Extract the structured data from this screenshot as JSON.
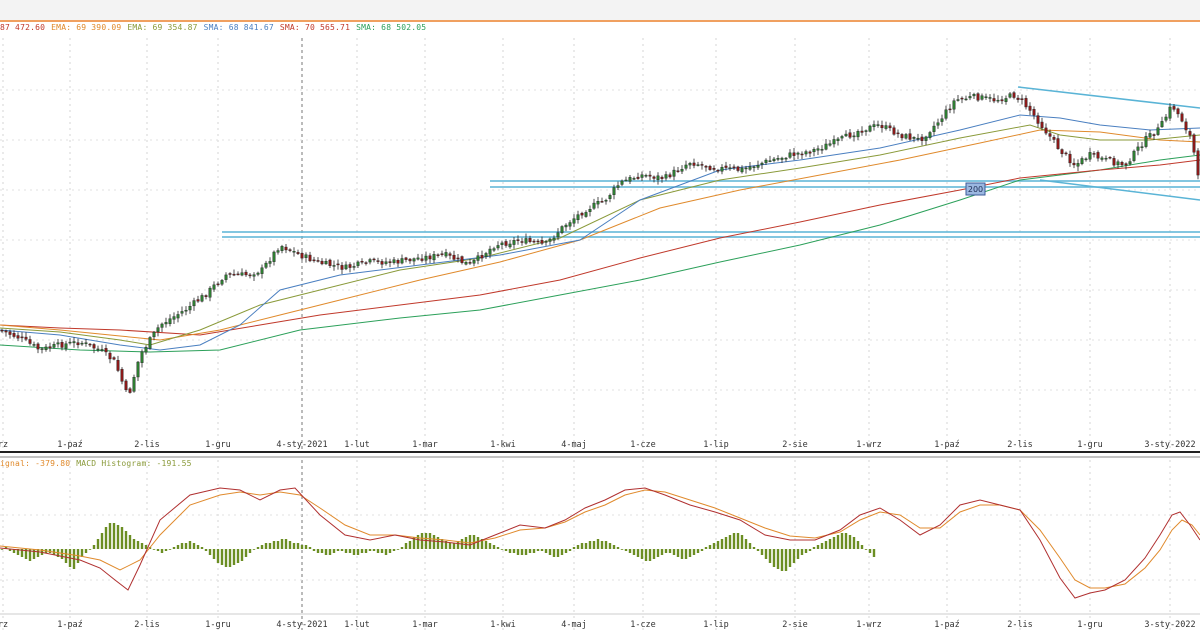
{
  "legend": {
    "items": [
      {
        "text": "87 472.60",
        "color": "#c0392b"
      },
      {
        "text": "EMA: 69 390.09",
        "color": "#e08a2c"
      },
      {
        "text": "EMA: 69 354.87",
        "color": "#8a9a3a"
      },
      {
        "text": "SMA: 68 841.67",
        "color": "#4a7fc0"
      },
      {
        "text": "SMA: 70 565.71",
        "color": "#c0392b"
      },
      {
        "text": "SMA: 68 502.05",
        "color": "#2ca05a"
      }
    ]
  },
  "macd_legend": {
    "items": [
      {
        "text": "ignal: -379.80",
        "color": "#e08a2c"
      },
      {
        "text": "MACD Histogram: -191.55",
        "color": "#8a9a3a"
      }
    ]
  },
  "ma_label": "200",
  "colors": {
    "up": "#2e7d32",
    "down": "#8b1a1a",
    "trend": "#5ab4d6",
    "ema1": "#e08a2c",
    "ema2": "#8a9a3a",
    "sma50": "#4a7fc0",
    "sma100": "#c0392b",
    "sma200": "#2ca05a",
    "macd": "#b03030",
    "signal": "#e08a2c",
    "hist": "#6b8e23"
  },
  "chart_data": [
    {
      "type": "candlestick",
      "x_ticks": [
        "rz",
        "1-paź",
        "2-lis",
        "1-gru",
        "4-sty-2021",
        "1-lut",
        "1-mar",
        "1-kwi",
        "4-maj",
        "1-cze",
        "1-lip",
        "2-sie",
        "1-wrz",
        "1-paź",
        "2-lis",
        "1-gru",
        "3-sty-2022"
      ],
      "close_path": [
        [
          0,
          330
        ],
        [
          20,
          338
        ],
        [
          40,
          350
        ],
        [
          60,
          345
        ],
        [
          80,
          342
        ],
        [
          100,
          350
        ],
        [
          115,
          362
        ],
        [
          128,
          398
        ],
        [
          140,
          355
        ],
        [
          160,
          325
        ],
        [
          185,
          310
        ],
        [
          205,
          295
        ],
        [
          225,
          275
        ],
        [
          245,
          275
        ],
        [
          262,
          270
        ],
        [
          280,
          245
        ],
        [
          300,
          255
        ],
        [
          320,
          263
        ],
        [
          345,
          268
        ],
        [
          370,
          262
        ],
        [
          395,
          262
        ],
        [
          420,
          258
        ],
        [
          445,
          255
        ],
        [
          470,
          265
        ],
        [
          495,
          245
        ],
        [
          520,
          240
        ],
        [
          545,
          245
        ],
        [
          565,
          225
        ],
        [
          585,
          210
        ],
        [
          605,
          200
        ],
        [
          620,
          183
        ],
        [
          640,
          175
        ],
        [
          665,
          178
        ],
        [
          690,
          162
        ],
        [
          715,
          168
        ],
        [
          740,
          170
        ],
        [
          765,
          162
        ],
        [
          790,
          155
        ],
        [
          815,
          150
        ],
        [
          840,
          140
        ],
        [
          860,
          130
        ],
        [
          880,
          125
        ],
        [
          900,
          135
        ],
        [
          920,
          140
        ],
        [
          940,
          120
        ],
        [
          955,
          100
        ],
        [
          975,
          97
        ],
        [
          995,
          100
        ],
        [
          1015,
          95
        ],
        [
          1030,
          110
        ],
        [
          1045,
          130
        ],
        [
          1060,
          150
        ],
        [
          1075,
          165
        ],
        [
          1090,
          155
        ],
        [
          1105,
          160
        ],
        [
          1125,
          165
        ],
        [
          1145,
          140
        ],
        [
          1160,
          128
        ],
        [
          1172,
          105
        ],
        [
          1182,
          120
        ],
        [
          1192,
          140
        ],
        [
          1198,
          178
        ]
      ],
      "overlays": {
        "ema_fast": [
          [
            0,
            328
          ],
          [
            60,
            332
          ],
          [
            120,
            340
          ],
          [
            150,
            345
          ],
          [
            200,
            330
          ],
          [
            260,
            305
          ],
          [
            320,
            290
          ],
          [
            400,
            270
          ],
          [
            480,
            258
          ],
          [
            560,
            238
          ],
          [
            640,
            200
          ],
          [
            720,
            180
          ],
          [
            800,
            168
          ],
          [
            880,
            155
          ],
          [
            960,
            138
          ],
          [
            1030,
            125
          ],
          [
            1060,
            135
          ],
          [
            1100,
            140
          ],
          [
            1150,
            140
          ],
          [
            1200,
            135
          ]
        ],
        "ema_slow": [
          [
            0,
            325
          ],
          [
            60,
            330
          ],
          [
            120,
            336
          ],
          [
            160,
            340
          ],
          [
            220,
            330
          ],
          [
            280,
            315
          ],
          [
            340,
            300
          ],
          [
            420,
            280
          ],
          [
            500,
            262
          ],
          [
            580,
            240
          ],
          [
            660,
            208
          ],
          [
            740,
            190
          ],
          [
            820,
            175
          ],
          [
            900,
            160
          ],
          [
            980,
            143
          ],
          [
            1040,
            130
          ],
          [
            1100,
            132
          ],
          [
            1160,
            140
          ],
          [
            1200,
            142
          ]
        ],
        "sma50": [
          [
            0,
            330
          ],
          [
            60,
            335
          ],
          [
            120,
            345
          ],
          [
            160,
            350
          ],
          [
            200,
            345
          ],
          [
            240,
            325
          ],
          [
            280,
            290
          ],
          [
            340,
            275
          ],
          [
            420,
            265
          ],
          [
            500,
            255
          ],
          [
            580,
            240
          ],
          [
            640,
            200
          ],
          [
            720,
            170
          ],
          [
            800,
            160
          ],
          [
            880,
            148
          ],
          [
            960,
            130
          ],
          [
            1020,
            115
          ],
          [
            1060,
            118
          ],
          [
            1100,
            125
          ],
          [
            1150,
            130
          ],
          [
            1200,
            128
          ]
        ],
        "sma100": [
          [
            0,
            325
          ],
          [
            60,
            328
          ],
          [
            120,
            330
          ],
          [
            200,
            335
          ],
          [
            260,
            325
          ],
          [
            320,
            315
          ],
          [
            400,
            305
          ],
          [
            480,
            295
          ],
          [
            560,
            280
          ],
          [
            640,
            258
          ],
          [
            720,
            238
          ],
          [
            800,
            222
          ],
          [
            880,
            205
          ],
          [
            960,
            190
          ],
          [
            1020,
            178
          ],
          [
            1100,
            170
          ],
          [
            1160,
            165
          ],
          [
            1200,
            160
          ]
        ],
        "sma200": [
          [
            0,
            345
          ],
          [
            80,
            350
          ],
          [
            150,
            352
          ],
          [
            220,
            350
          ],
          [
            300,
            330
          ],
          [
            400,
            318
          ],
          [
            480,
            310
          ],
          [
            560,
            295
          ],
          [
            640,
            280
          ],
          [
            720,
            262
          ],
          [
            800,
            245
          ],
          [
            880,
            225
          ],
          [
            960,
            200
          ],
          [
            1020,
            180
          ],
          [
            1100,
            170
          ],
          [
            1160,
            160
          ],
          [
            1200,
            155
          ]
        ]
      },
      "horizontal_levels": [
        [
          490,
          181,
          1200,
          181
        ],
        [
          490,
          187,
          1200,
          187
        ],
        [
          222,
          232,
          1200,
          232
        ],
        [
          222,
          237,
          1200,
          237
        ]
      ],
      "trend_lines": [
        [
          1018,
          87,
          1200,
          108
        ],
        [
          1040,
          180,
          1200,
          200
        ]
      ]
    },
    {
      "type": "macd",
      "zero_line": 549,
      "macd_path": [
        [
          0,
          548
        ],
        [
          40,
          552
        ],
        [
          80,
          560
        ],
        [
          100,
          568
        ],
        [
          115,
          580
        ],
        [
          128,
          590
        ],
        [
          140,
          565
        ],
        [
          160,
          520
        ],
        [
          190,
          495
        ],
        [
          220,
          488
        ],
        [
          240,
          490
        ],
        [
          260,
          500
        ],
        [
          280,
          490
        ],
        [
          295,
          488
        ],
        [
          320,
          515
        ],
        [
          345,
          535
        ],
        [
          370,
          540
        ],
        [
          395,
          535
        ],
        [
          420,
          540
        ],
        [
          445,
          542
        ],
        [
          470,
          545
        ],
        [
          495,
          535
        ],
        [
          520,
          525
        ],
        [
          545,
          528
        ],
        [
          565,
          520
        ],
        [
          585,
          508
        ],
        [
          605,
          500
        ],
        [
          625,
          490
        ],
        [
          645,
          488
        ],
        [
          665,
          495
        ],
        [
          690,
          505
        ],
        [
          715,
          512
        ],
        [
          740,
          520
        ],
        [
          765,
          535
        ],
        [
          790,
          540
        ],
        [
          815,
          540
        ],
        [
          840,
          530
        ],
        [
          860,
          515
        ],
        [
          880,
          508
        ],
        [
          900,
          520
        ],
        [
          920,
          535
        ],
        [
          940,
          525
        ],
        [
          960,
          505
        ],
        [
          980,
          500
        ],
        [
          1000,
          505
        ],
        [
          1020,
          510
        ],
        [
          1040,
          540
        ],
        [
          1060,
          578
        ],
        [
          1075,
          598
        ],
        [
          1090,
          593
        ],
        [
          1105,
          590
        ],
        [
          1125,
          580
        ],
        [
          1145,
          558
        ],
        [
          1160,
          535
        ],
        [
          1172,
          515
        ],
        [
          1180,
          512
        ],
        [
          1190,
          525
        ],
        [
          1200,
          540
        ]
      ],
      "signal_path": [
        [
          0,
          546
        ],
        [
          40,
          550
        ],
        [
          80,
          556
        ],
        [
          100,
          560
        ],
        [
          120,
          570
        ],
        [
          140,
          560
        ],
        [
          160,
          535
        ],
        [
          190,
          505
        ],
        [
          220,
          495
        ],
        [
          240,
          492
        ],
        [
          260,
          495
        ],
        [
          280,
          492
        ],
        [
          300,
          495
        ],
        [
          320,
          508
        ],
        [
          345,
          525
        ],
        [
          370,
          535
        ],
        [
          395,
          535
        ],
        [
          420,
          538
        ],
        [
          445,
          540
        ],
        [
          470,
          543
        ],
        [
          495,
          538
        ],
        [
          520,
          530
        ],
        [
          545,
          528
        ],
        [
          565,
          522
        ],
        [
          585,
          512
        ],
        [
          605,
          505
        ],
        [
          625,
          495
        ],
        [
          645,
          490
        ],
        [
          665,
          492
        ],
        [
          690,
          500
        ],
        [
          715,
          508
        ],
        [
          740,
          518
        ],
        [
          765,
          528
        ],
        [
          790,
          536
        ],
        [
          815,
          538
        ],
        [
          840,
          532
        ],
        [
          860,
          520
        ],
        [
          880,
          512
        ],
        [
          900,
          515
        ],
        [
          920,
          528
        ],
        [
          940,
          528
        ],
        [
          960,
          512
        ],
        [
          980,
          505
        ],
        [
          1000,
          505
        ],
        [
          1020,
          510
        ],
        [
          1040,
          530
        ],
        [
          1060,
          558
        ],
        [
          1075,
          580
        ],
        [
          1090,
          588
        ],
        [
          1105,
          588
        ],
        [
          1125,
          584
        ],
        [
          1145,
          568
        ],
        [
          1160,
          550
        ],
        [
          1172,
          530
        ],
        [
          1182,
          520
        ],
        [
          1192,
          525
        ],
        [
          1200,
          535
        ]
      ],
      "histogram": {
        "start_x": 2,
        "step": 4,
        "bars": [
          0,
          2,
          -2,
          -4,
          -6,
          -8,
          -10,
          -12,
          -10,
          -8,
          -6,
          -4,
          -4,
          -6,
          -8,
          -10,
          -14,
          -18,
          -20,
          -14,
          -8,
          -4,
          0,
          4,
          10,
          16,
          22,
          26,
          26,
          24,
          22,
          18,
          14,
          10,
          8,
          6,
          4,
          2,
          0,
          -2,
          -4,
          -2,
          0,
          2,
          4,
          6,
          6,
          8,
          6,
          4,
          2,
          -2,
          -6,
          -10,
          -14,
          -16,
          -18,
          -18,
          -16,
          -14,
          -12,
          -8,
          -4,
          0,
          2,
          4,
          6,
          6,
          8,
          8,
          10,
          10,
          8,
          6,
          6,
          4,
          4,
          2,
          -2,
          -4,
          -4,
          -6,
          -6,
          -4,
          -2,
          -2,
          -4,
          -4,
          -6,
          -6,
          -4,
          -4,
          -2,
          -2,
          -4,
          -4,
          -6,
          -4,
          -2,
          0,
          2,
          6,
          8,
          12,
          14,
          16,
          16,
          16,
          14,
          12,
          10,
          8,
          6,
          6,
          8,
          10,
          12,
          14,
          14,
          12,
          10,
          8,
          6,
          4,
          2,
          0,
          -2,
          -4,
          -4,
          -6,
          -6,
          -6,
          -4,
          -4,
          -2,
          -2,
          -4,
          -6,
          -8,
          -8,
          -6,
          -4,
          -2,
          2,
          4,
          6,
          6,
          8,
          8,
          10,
          8,
          8,
          6,
          4,
          2,
          0,
          -2,
          -4,
          -6,
          -8,
          -10,
          -12,
          -12,
          -10,
          -8,
          -6,
          -4,
          -4,
          -6,
          -8,
          -10,
          -10,
          -8,
          -6,
          -4,
          -2,
          2,
          4,
          6,
          8,
          10,
          12,
          14,
          16,
          16,
          14,
          10,
          6,
          2,
          -2,
          -6,
          -10,
          -14,
          -18,
          -20,
          -22,
          -22,
          -18,
          -14,
          -10,
          -6,
          -4,
          -2,
          2,
          4,
          6,
          8,
          10,
          12,
          14,
          16,
          16,
          14,
          12,
          8,
          4,
          0,
          -4,
          -8
        ]
      }
    }
  ]
}
